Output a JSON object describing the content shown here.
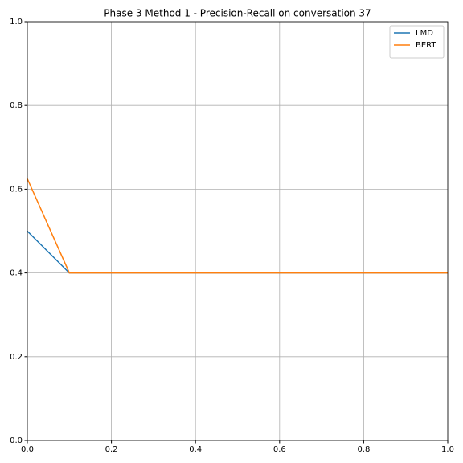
{
  "chart_data": {
    "type": "line",
    "title": "Phase 3 Method 1 - Precision-Recall on conversation 37",
    "x": [
      0,
      0.1,
      1
    ],
    "series": [
      {
        "name": "LMD",
        "color": "#1f77b4",
        "values": [
          0.5,
          0.4,
          0.4
        ]
      },
      {
        "name": "BERT",
        "color": "#ff7f0e",
        "values": [
          0.625,
          0.4,
          0.4
        ]
      }
    ],
    "xlim": [
      0,
      1
    ],
    "ylim": [
      0,
      1
    ],
    "xticks": [
      {
        "value": 0,
        "label": "0.0"
      },
      0.2,
      0.4,
      0.6,
      0.8,
      {
        "value": 1,
        "label": "1.0"
      }
    ],
    "yticks": [
      {
        "value": 0,
        "label": "0.0"
      },
      0.2,
      0.4,
      0.6,
      0.8,
      {
        "value": 1,
        "label": "1.0"
      }
    ],
    "grid": true,
    "legend": "upper right"
  }
}
